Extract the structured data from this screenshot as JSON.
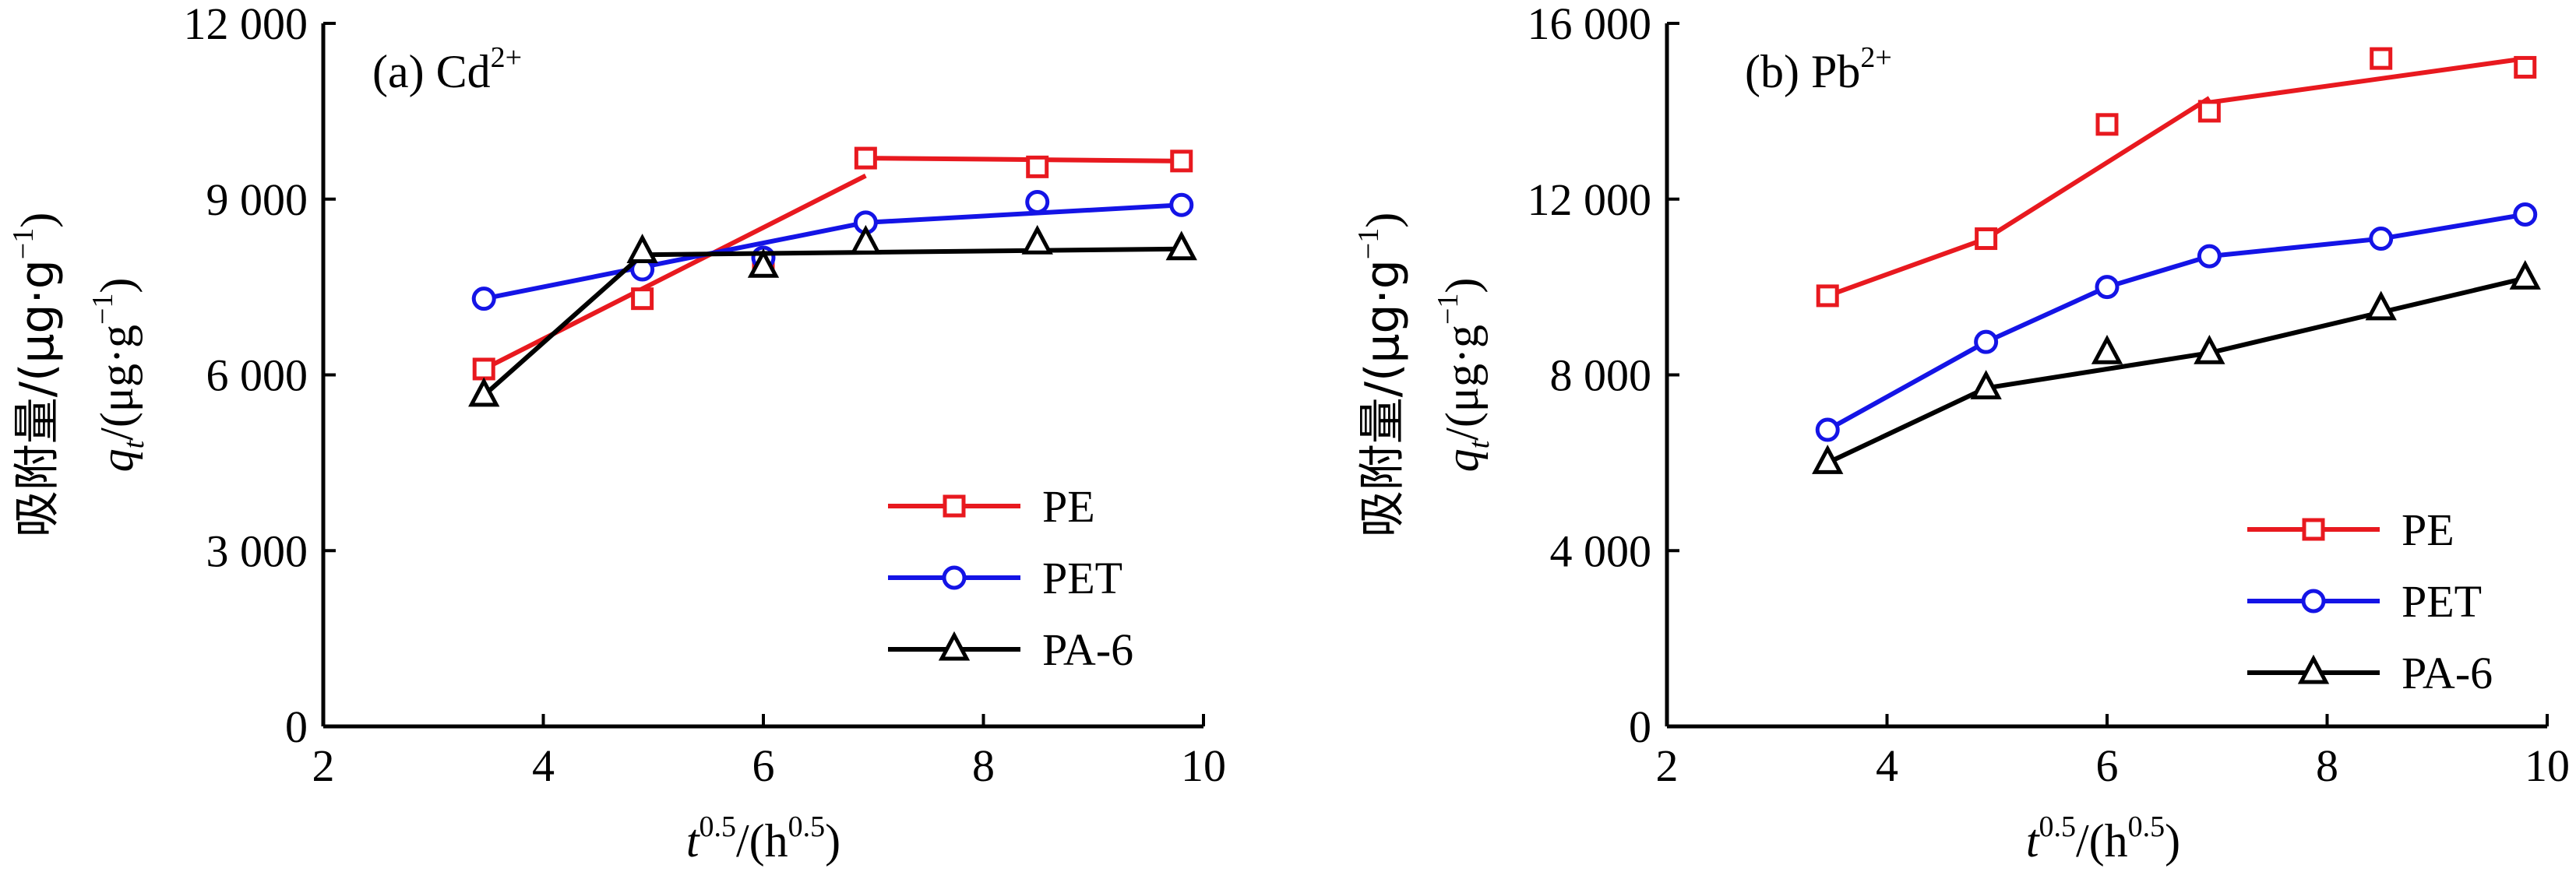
{
  "chart_data": [
    {
      "type": "line",
      "panel_label": "(a) Cd",
      "panel_label_sup": "2+",
      "xlabel": {
        "main": "t",
        "sup1": "0.5",
        "paren": "/(h",
        "sup2": "0.5",
        "close": ")"
      },
      "ylabel": {
        "line1": "吸附量/(μg·g",
        "line1_sup": "−1",
        "line1_close": ")",
        "line2_q": "q",
        "line2_sub": "t",
        "line2": "/(μg·g",
        "line2_sup": "−1",
        "line2_close": ")"
      },
      "xlim": [
        2,
        10
      ],
      "ylim": [
        0,
        12000
      ],
      "xticks": [
        2,
        4,
        6,
        8,
        10
      ],
      "xtick_labels": [
        "2",
        "4",
        "6",
        "8",
        "10"
      ],
      "yticks": [
        0,
        3000,
        6000,
        9000,
        12000
      ],
      "ytick_labels": [
        "0",
        "3 000",
        "6 000",
        "9 000",
        "12 000"
      ],
      "legend_position": "lower-right",
      "series": [
        {
          "name": "PE",
          "color": "#e8191f",
          "marker": "square",
          "x": [
            3.46,
            4.9,
            6.0,
            6.93,
            8.49,
            9.8
          ],
          "y": [
            6100,
            7300,
            7900,
            9700,
            9550,
            9650
          ],
          "fit_segments": [
            {
              "x": [
                3.46,
                6.93
              ],
              "y": [
                6100,
                9400
              ]
            },
            {
              "x": [
                6.93,
                9.8
              ],
              "y": [
                9700,
                9650
              ]
            }
          ]
        },
        {
          "name": "PET",
          "color": "#1414e6",
          "marker": "circle",
          "x": [
            3.46,
            4.9,
            6.0,
            6.93,
            8.49,
            9.8
          ],
          "y": [
            7300,
            7800,
            8000,
            8600,
            8950,
            8900
          ],
          "fit_segments": [
            {
              "x": [
                3.46,
                6.93
              ],
              "y": [
                7300,
                8600
              ]
            },
            {
              "x": [
                6.93,
                9.8
              ],
              "y": [
                8600,
                8900
              ]
            }
          ]
        },
        {
          "name": "PA-6",
          "color": "#000000",
          "marker": "triangle",
          "x": [
            3.46,
            4.9,
            6.0,
            6.93,
            8.49,
            9.8
          ],
          "y": [
            5650,
            8100,
            7850,
            8250,
            8250,
            8150
          ],
          "fit_segments": [
            {
              "x": [
                3.46,
                4.9
              ],
              "y": [
                5650,
                8050
              ]
            },
            {
              "x": [
                4.9,
                9.8
              ],
              "y": [
                8050,
                8150
              ]
            }
          ]
        }
      ]
    },
    {
      "type": "line",
      "panel_label": "(b) Pb",
      "panel_label_sup": "2+",
      "xlabel": {
        "main": "t",
        "sup1": "0.5",
        "paren": "/(h",
        "sup2": "0.5",
        "close": ")"
      },
      "ylabel": {
        "line1": "吸附量/(μg·g",
        "line1_sup": "−1",
        "line1_close": ")",
        "line2_q": "q",
        "line2_sub": "t",
        "line2": "/(μg·g",
        "line2_sup": "−1",
        "line2_close": ")"
      },
      "xlim": [
        2,
        10
      ],
      "ylim": [
        0,
        16000
      ],
      "xticks": [
        2,
        4,
        6,
        8,
        10
      ],
      "xtick_labels": [
        "2",
        "4",
        "6",
        "8",
        "10"
      ],
      "yticks": [
        0,
        4000,
        8000,
        12000,
        16000
      ],
      "ytick_labels": [
        "0",
        "4 000",
        "8 000",
        "12 000",
        "16 000"
      ],
      "legend_position": "lower-right",
      "series": [
        {
          "name": "PE",
          "color": "#e8191f",
          "marker": "square",
          "x": [
            3.46,
            4.9,
            6.0,
            6.93,
            8.49,
            9.8
          ],
          "y": [
            9800,
            11100,
            13700,
            14000,
            15200,
            15000
          ],
          "fit_segments": [
            {
              "x": [
                3.46,
                4.9,
                6.93
              ],
              "y": [
                9800,
                11100,
                14300
              ]
            },
            {
              "x": [
                6.93,
                9.8
              ],
              "y": [
                14200,
                15200
              ]
            }
          ]
        },
        {
          "name": "PET",
          "color": "#1414e6",
          "marker": "circle",
          "x": [
            3.46,
            4.9,
            6.0,
            6.93,
            8.49,
            9.8
          ],
          "y": [
            6750,
            8750,
            10000,
            10700,
            11100,
            11650
          ],
          "fit_segments": [
            {
              "x": [
                3.46,
                4.9,
                6.0,
                6.93,
                8.49,
                9.8
              ],
              "y": [
                6750,
                8750,
                10000,
                10700,
                11100,
                11650
              ]
            }
          ]
        },
        {
          "name": "PA-6",
          "color": "#000000",
          "marker": "triangle",
          "x": [
            3.46,
            4.9,
            6.0,
            6.93,
            8.49,
            9.8
          ],
          "y": [
            6000,
            7700,
            8500,
            8500,
            9500,
            10200
          ],
          "fit_segments": [
            {
              "x": [
                3.46,
                4.9,
                6.93,
                9.8
              ],
              "y": [
                6000,
                7700,
                8500,
                10200
              ]
            }
          ]
        }
      ]
    }
  ]
}
